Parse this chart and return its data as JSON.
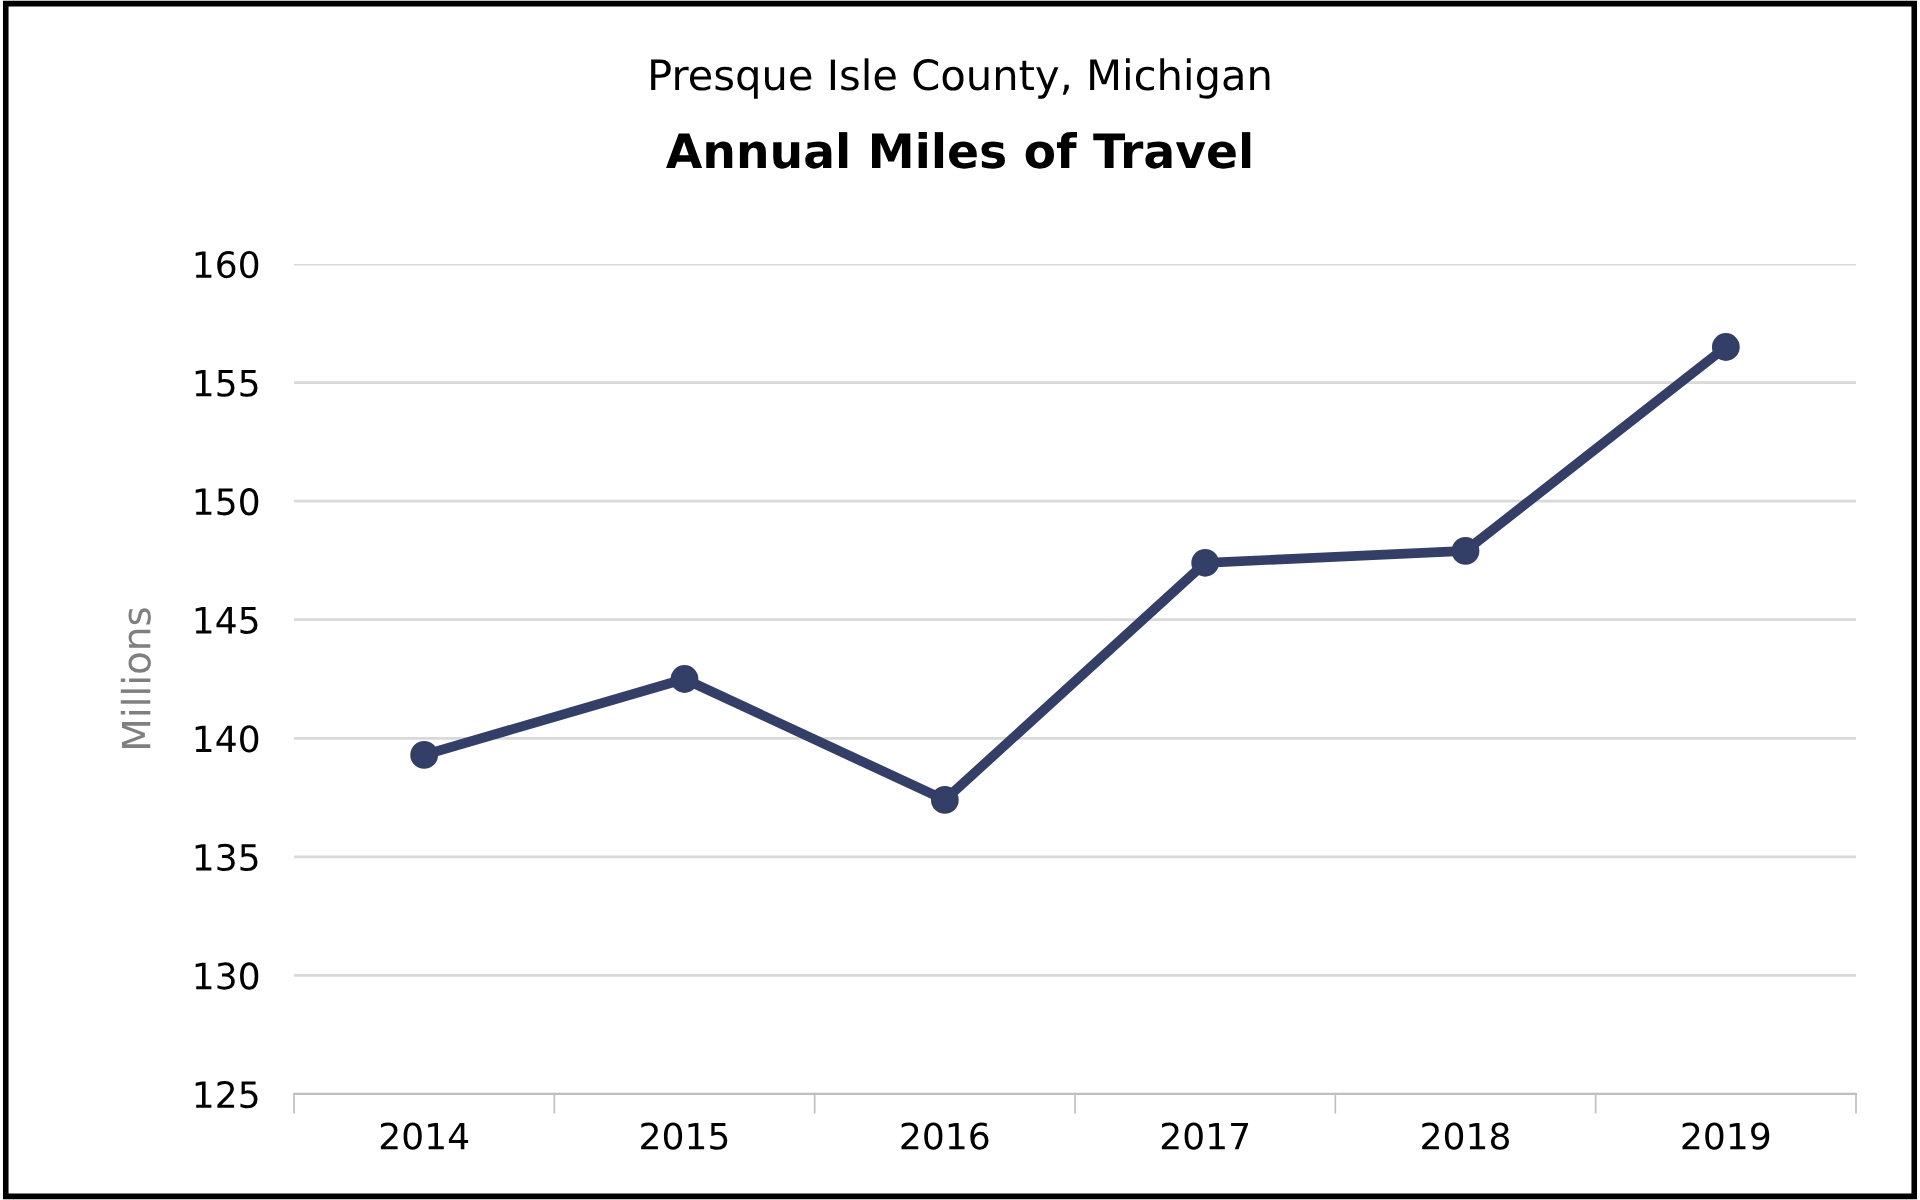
{
  "chart_data": {
    "type": "line",
    "subtitle": "Presque Isle County, Michigan",
    "title": "Annual Miles of Travel",
    "ylabel": "Millions",
    "categories": [
      "2014",
      "2015",
      "2016",
      "2017",
      "2018",
      "2019"
    ],
    "series": [
      {
        "color": "#333f66",
        "values": [
          139.3,
          142.5,
          137.4,
          147.4,
          147.9,
          156.5
        ]
      }
    ],
    "ylim": [
      125,
      160
    ],
    "yticks": [
      125,
      130,
      135,
      140,
      145,
      150,
      155,
      160
    ],
    "grid": "y",
    "marker": "circle",
    "line_style": "solid",
    "legend": false
  }
}
